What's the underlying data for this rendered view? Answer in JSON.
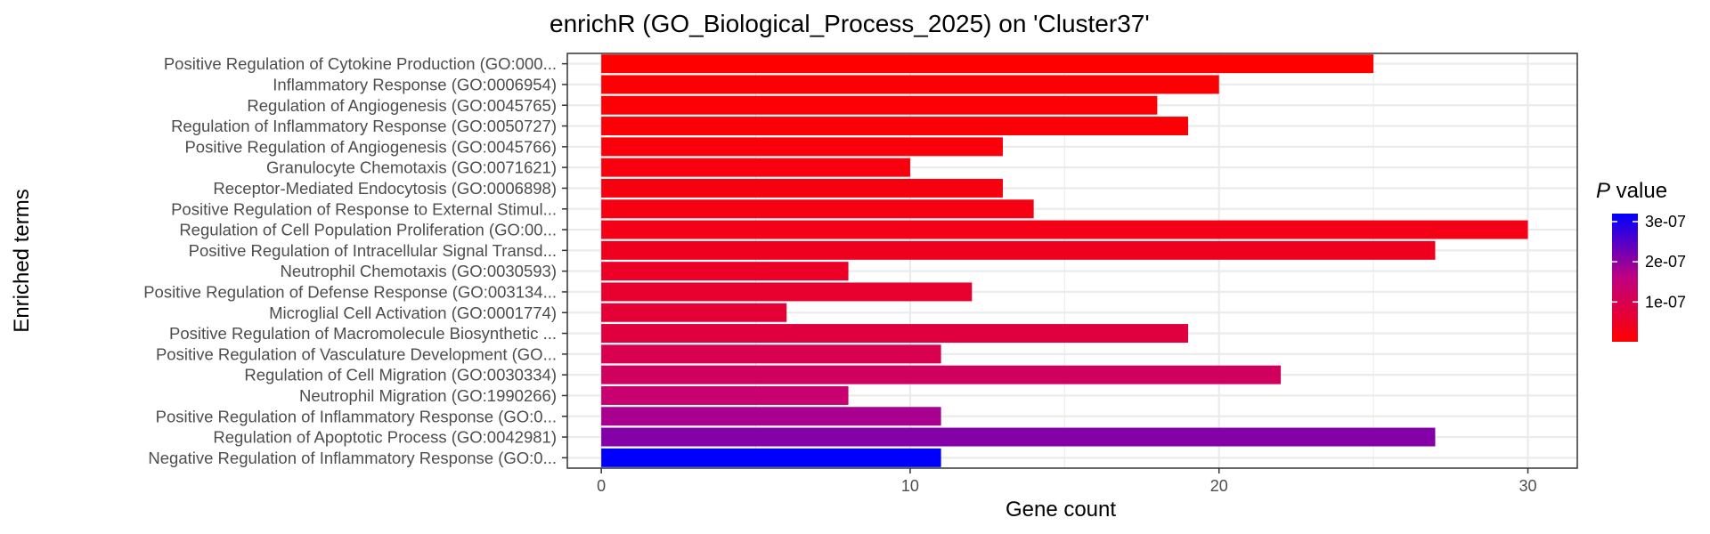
{
  "chart_data": {
    "type": "bar",
    "orientation": "horizontal",
    "title": "enrichR (GO_Biological_Process_2025) on 'Cluster37'",
    "xlabel": "Gene count",
    "ylabel": "Enriched terms",
    "xlim": [
      -1.1,
      31.6
    ],
    "xticks": [
      0,
      10,
      20,
      30
    ],
    "grid": true,
    "legend": {
      "title_italic": "P",
      "title_rest": " value",
      "position": "right",
      "ticks": [
        "1e-07",
        "2e-07",
        "3e-07"
      ],
      "tick_values": [
        1e-07,
        2e-07,
        3e-07
      ],
      "range": [
        1e-09,
        3.2e-07
      ],
      "low_color": "#ff0000",
      "high_color": "#0000ff"
    },
    "categories": [
      "Positive Regulation of Cytokine Production (GO:000...",
      "Inflammatory Response (GO:0006954)",
      "Regulation of Angiogenesis (GO:0045765)",
      "Regulation of Inflammatory Response (GO:0050727)",
      "Positive Regulation of Angiogenesis (GO:0045766)",
      "Granulocyte Chemotaxis (GO:0071621)",
      "Receptor-Mediated Endocytosis (GO:0006898)",
      "Positive Regulation of Response to External Stimul...",
      "Regulation of Cell Population Proliferation (GO:00...",
      "Positive Regulation of Intracellular Signal Transd...",
      "Neutrophil Chemotaxis (GO:0030593)",
      "Positive Regulation of Defense Response (GO:003134...",
      "Microglial Cell Activation (GO:0001774)",
      "Positive Regulation of Macromolecule Biosynthetic ...",
      "Positive Regulation of Vasculature Development (GO...",
      "Regulation of Cell Migration (GO:0030334)",
      "Neutrophil Migration (GO:1990266)",
      "Positive Regulation of Inflammatory Response (GO:0...",
      "Regulation of Apoptotic Process (GO:0042981)",
      "Negative Regulation of Inflammatory Response (GO:0..."
    ],
    "values": [
      25,
      20,
      18,
      19,
      13,
      10,
      13,
      14,
      30,
      27,
      8,
      12,
      6,
      19,
      11,
      22,
      8,
      11,
      27,
      11
    ],
    "p_values": [
      2e-09,
      5e-09,
      8e-09,
      1e-08,
      1.5e-08,
      1.8e-08,
      2e-08,
      2.5e-08,
      3e-08,
      4e-08,
      5e-08,
      6e-08,
      7e-08,
      8e-08,
      1e-07,
      1.2e-07,
      1.4e-07,
      1.8e-07,
      2.1e-07,
      3.2e-07
    ]
  }
}
